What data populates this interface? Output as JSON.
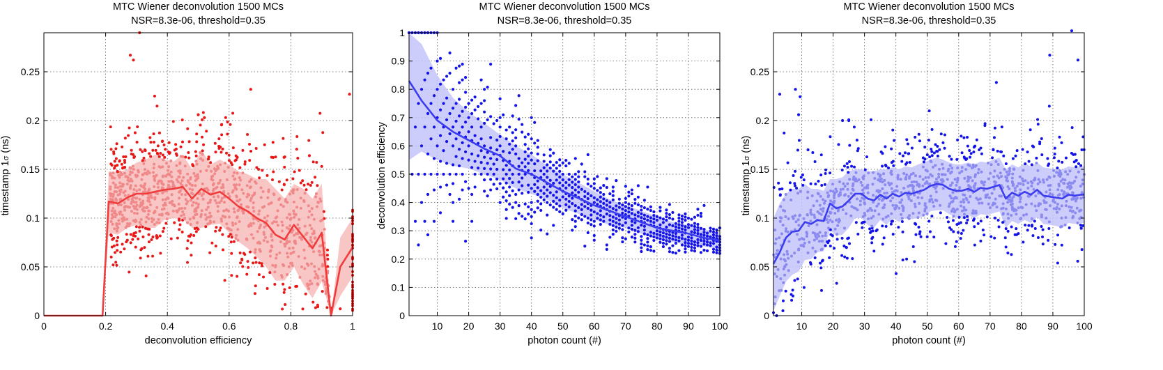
{
  "chart_data": [
    {
      "type": "scatter",
      "title": "MTC Wiener deconvolution 1500 MCs",
      "subtitle": "NSR=8.3e-06, threshold=0.35",
      "xlabel": "deconvolution efficiency",
      "ylabel_main": "timestamp 1",
      "ylabel_symbol": "σ",
      "ylabel_unit": " (ns)",
      "xlim": [
        0,
        1
      ],
      "ylim": [
        0,
        0.29
      ],
      "xticks": [
        0,
        0.2,
        0.4,
        0.6,
        0.8,
        1
      ],
      "xtick_labels": [
        "0",
        "0.2",
        "0.4",
        "0.6",
        "0.8",
        "1"
      ],
      "yticks": [
        0,
        0.05,
        0.1,
        0.15,
        0.2,
        0.25
      ],
      "ytick_labels": [
        "0",
        "0.05",
        "0.1",
        "0.15",
        "0.2",
        "0.25"
      ],
      "grid": true,
      "colors": {
        "line": "#f03c3c",
        "band": "#f8bcbc",
        "points_inner": "#f08a8a",
        "points_outer": "#e81818"
      },
      "mean_line": {
        "x": [
          0,
          0.19,
          0.21,
          0.24,
          0.27,
          0.3,
          0.33,
          0.36,
          0.39,
          0.42,
          0.45,
          0.48,
          0.51,
          0.54,
          0.57,
          0.6,
          0.63,
          0.66,
          0.69,
          0.72,
          0.75,
          0.78,
          0.81,
          0.84,
          0.87,
          0.9,
          0.93,
          0.96,
          1.0
        ],
        "y": [
          0,
          0,
          0.117,
          0.115,
          0.121,
          0.125,
          0.125,
          0.127,
          0.129,
          0.13,
          0.132,
          0.12,
          0.13,
          0.124,
          0.127,
          0.12,
          0.112,
          0.107,
          0.1,
          0.095,
          0.083,
          0.078,
          0.093,
          0.081,
          0.069,
          0.085,
          0.0,
          0.05,
          0.07
        ]
      },
      "band_upper": [
        0,
        0,
        0.148,
        0.147,
        0.15,
        0.157,
        0.16,
        0.165,
        0.16,
        0.158,
        0.165,
        0.15,
        0.17,
        0.155,
        0.16,
        0.155,
        0.148,
        0.145,
        0.14,
        0.14,
        0.13,
        0.12,
        0.135,
        0.13,
        0.12,
        0.135,
        0.0,
        0.08,
        0.1
      ],
      "band_lower": [
        0,
        0,
        0.085,
        0.083,
        0.09,
        0.093,
        0.09,
        0.09,
        0.098,
        0.1,
        0.099,
        0.09,
        0.09,
        0.093,
        0.094,
        0.085,
        0.076,
        0.069,
        0.06,
        0.05,
        0.036,
        0.036,
        0.05,
        0.032,
        0.018,
        0.035,
        0.0,
        0.02,
        0.04
      ],
      "outliers": [
        [
          0.28,
          0.267
        ],
        [
          0.29,
          0.262
        ],
        [
          0.31,
          0.29
        ],
        [
          0.5,
          0.206
        ],
        [
          0.52,
          0.203
        ],
        [
          0.67,
          0.232
        ],
        [
          0.96,
          0.007
        ],
        [
          0.99,
          0.227
        ],
        [
          0.86,
          0.164
        ],
        [
          0.9,
          0.153
        ]
      ]
    },
    {
      "type": "scatter",
      "title": "MTC Wiener deconvolution 1500 MCs",
      "subtitle": "NSR=8.3e-06, threshold=0.35",
      "xlabel": "photon count (#)",
      "ylabel": "deconvolution efficiency",
      "xlim": [
        1,
        100
      ],
      "ylim": [
        0,
        1
      ],
      "xticks": [
        10,
        20,
        30,
        40,
        50,
        60,
        70,
        80,
        90,
        100
      ],
      "xtick_labels": [
        "10",
        "20",
        "30",
        "40",
        "50",
        "60",
        "70",
        "80",
        "90",
        "100"
      ],
      "yticks": [
        0,
        0.1,
        0.2,
        0.3,
        0.4,
        0.5,
        0.6,
        0.7,
        0.8,
        0.9,
        1
      ],
      "ytick_labels": [
        "0",
        "0.1",
        "0.2",
        "0.3",
        "0.4",
        "0.5",
        "0.6",
        "0.7",
        "0.8",
        "0.9",
        "1"
      ],
      "grid": true,
      "colors": {
        "line": "#3c3cf0",
        "band": "#c4c4fa",
        "points": "#1414e8"
      },
      "mean_line": {
        "x": [
          1,
          5,
          10,
          15,
          20,
          25,
          30,
          35,
          40,
          45,
          50,
          55,
          60,
          65,
          70,
          75,
          80,
          85,
          90,
          95,
          100
        ],
        "y": [
          0.83,
          0.76,
          0.69,
          0.65,
          0.62,
          0.59,
          0.565,
          0.52,
          0.5,
          0.47,
          0.44,
          0.415,
          0.39,
          0.37,
          0.35,
          0.33,
          0.31,
          0.3,
          0.29,
          0.275,
          0.265
        ]
      },
      "band_upper": [
        1.0,
        0.96,
        0.85,
        0.77,
        0.72,
        0.68,
        0.64,
        0.6,
        0.57,
        0.53,
        0.5,
        0.47,
        0.44,
        0.41,
        0.39,
        0.37,
        0.35,
        0.33,
        0.32,
        0.305,
        0.29
      ],
      "band_lower": [
        0.55,
        0.58,
        0.55,
        0.53,
        0.52,
        0.5,
        0.48,
        0.45,
        0.43,
        0.41,
        0.38,
        0.36,
        0.34,
        0.32,
        0.31,
        0.29,
        0.27,
        0.26,
        0.25,
        0.245,
        0.235
      ]
    },
    {
      "type": "scatter",
      "title": "MTC Wiener deconvolution 1500 MCs",
      "subtitle": "NSR=8.3e-06, threshold=0.35",
      "xlabel": "photon count (#)",
      "ylabel_main": "timestamp 1",
      "ylabel_symbol": "σ",
      "ylabel_unit": " (ns)",
      "xlim": [
        1,
        100
      ],
      "ylim": [
        0,
        0.29
      ],
      "xticks": [
        10,
        20,
        30,
        40,
        50,
        60,
        70,
        80,
        90,
        100
      ],
      "xtick_labels": [
        "10",
        "20",
        "30",
        "40",
        "50",
        "60",
        "70",
        "80",
        "90",
        "100"
      ],
      "yticks": [
        0,
        0.05,
        0.1,
        0.15,
        0.2,
        0.25
      ],
      "ytick_labels": [
        "0",
        "0.05",
        "0.1",
        "0.15",
        "0.2",
        "0.25"
      ],
      "grid": true,
      "colors": {
        "line": "#3c3cf0",
        "band": "#c4c4fa",
        "points_inner": "#8a8af0",
        "points_outer": "#1414e8"
      },
      "mean_line": {
        "x": [
          1,
          3,
          5,
          7,
          9,
          11,
          13,
          15,
          17,
          19,
          21,
          23,
          25,
          27,
          29,
          31,
          33,
          35,
          37,
          39,
          41,
          43,
          45,
          47,
          49,
          51,
          53,
          55,
          57,
          59,
          61,
          63,
          65,
          67,
          69,
          71,
          73,
          75,
          77,
          79,
          81,
          83,
          85,
          87,
          89,
          91,
          93,
          95,
          97,
          99,
          100
        ],
        "y": [
          0.053,
          0.065,
          0.08,
          0.086,
          0.087,
          0.096,
          0.094,
          0.098,
          0.097,
          0.115,
          0.11,
          0.112,
          0.118,
          0.125,
          0.125,
          0.12,
          0.118,
          0.124,
          0.12,
          0.125,
          0.122,
          0.126,
          0.125,
          0.127,
          0.129,
          0.133,
          0.135,
          0.134,
          0.13,
          0.128,
          0.128,
          0.13,
          0.127,
          0.131,
          0.13,
          0.132,
          0.134,
          0.12,
          0.126,
          0.123,
          0.127,
          0.124,
          0.129,
          0.123,
          0.122,
          0.121,
          0.12,
          0.124,
          0.123,
          0.124,
          0.124
        ]
      },
      "band_upper": [
        0.1,
        0.115,
        0.125,
        0.13,
        0.13,
        0.135,
        0.13,
        0.13,
        0.128,
        0.14,
        0.14,
        0.142,
        0.148,
        0.15,
        0.15,
        0.148,
        0.148,
        0.15,
        0.15,
        0.152,
        0.15,
        0.153,
        0.152,
        0.155,
        0.157,
        0.16,
        0.162,
        0.16,
        0.157,
        0.155,
        0.155,
        0.157,
        0.155,
        0.158,
        0.157,
        0.16,
        0.162,
        0.15,
        0.155,
        0.152,
        0.156,
        0.153,
        0.157,
        0.152,
        0.151,
        0.15,
        0.15,
        0.153,
        0.152,
        0.153,
        0.153
      ],
      "band_lower": [
        0.005,
        0.02,
        0.035,
        0.042,
        0.045,
        0.057,
        0.058,
        0.065,
        0.066,
        0.088,
        0.082,
        0.083,
        0.09,
        0.1,
        0.1,
        0.093,
        0.09,
        0.098,
        0.093,
        0.1,
        0.096,
        0.1,
        0.099,
        0.1,
        0.102,
        0.107,
        0.108,
        0.108,
        0.104,
        0.101,
        0.101,
        0.103,
        0.1,
        0.104,
        0.103,
        0.105,
        0.107,
        0.09,
        0.097,
        0.094,
        0.098,
        0.095,
        0.101,
        0.094,
        0.093,
        0.092,
        0.09,
        0.095,
        0.094,
        0.095,
        0.095
      ],
      "outliers": [
        [
          3,
          0.227
        ],
        [
          8,
          0.232
        ],
        [
          9,
          0.206
        ],
        [
          12,
          0.17
        ],
        [
          23,
          0.2
        ],
        [
          25,
          0.2
        ],
        [
          72,
          0.239
        ],
        [
          89,
          0.267
        ],
        [
          96,
          0.292
        ],
        [
          98,
          0.262
        ],
        [
          1,
          0.003
        ],
        [
          2,
          0.0
        ],
        [
          4,
          0.005
        ]
      ]
    }
  ]
}
